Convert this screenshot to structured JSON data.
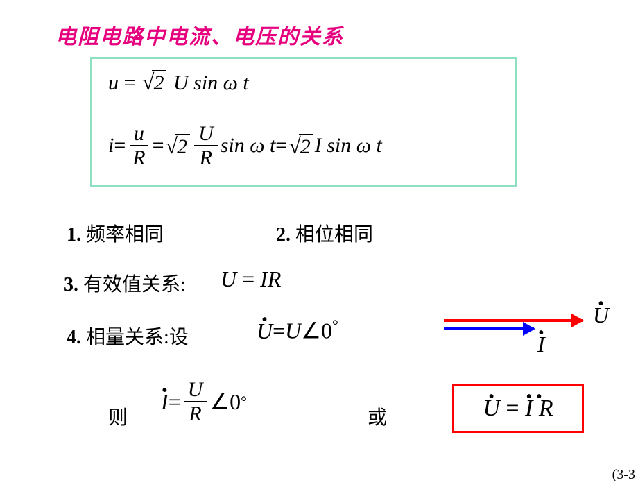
{
  "title": "电阻电路中电流、电压的关系",
  "box1": {
    "border_color": "#8ee0c0",
    "eq1_lhs": "u",
    "eq1_rhs_sqrt": "2",
    "eq1_rhs_rest": "U sin ω t",
    "eq2_lhs": "i",
    "eq2_frac1_num": "u",
    "eq2_frac1_den": "R",
    "eq2_sqrt": "2",
    "eq2_frac2_num": "U",
    "eq2_frac2_den": "R",
    "eq2_mid": "sin ω t",
    "eq2_sqrt2": "2",
    "eq2_end": "I sin ω t"
  },
  "items": {
    "i1_num": "1.",
    "i1_text": "频率相同",
    "i2_num": "2.",
    "i2_text": "相位相同",
    "i3_num": "3.",
    "i3_text": "有效值关系:",
    "i4_num": "4.",
    "i4_text": "相量关系:设"
  },
  "eq3": {
    "lhs": "U",
    "rhs": "IR"
  },
  "eq4": {
    "lhs": "U",
    "eq": "=",
    "rhs": "U",
    "angle": "∠",
    "val": "0",
    "deg": "°"
  },
  "arrows": {
    "red_color": "#ff0000",
    "blue_color": "#0000ff",
    "label_u": "U",
    "label_i": "I"
  },
  "then": "则",
  "eq5": {
    "lhs": "I",
    "frac_num": "U",
    "frac_den": "R",
    "angle": "∠",
    "val": "0",
    "deg": "°"
  },
  "or": "或",
  "box_red": {
    "border_color": "#ff0000",
    "lhs": "U",
    "rhs": "I R"
  },
  "page": "(3-3"
}
